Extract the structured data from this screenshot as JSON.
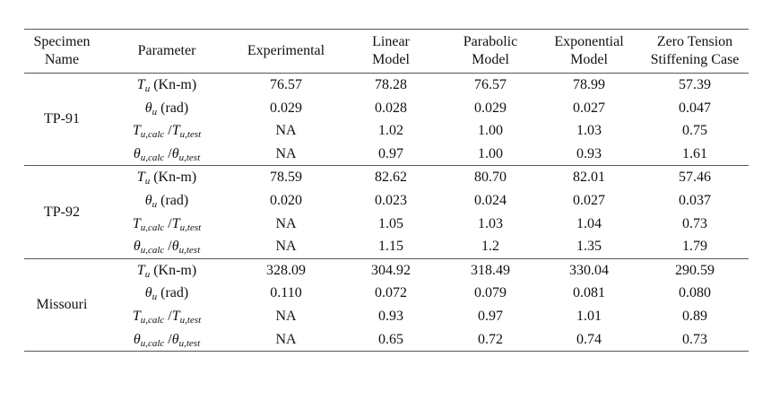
{
  "headers": [
    [
      "Specimen",
      "Name"
    ],
    [
      "Parameter"
    ],
    [
      "Experimental"
    ],
    [
      "Linear",
      "Model"
    ],
    [
      "Parabolic",
      "Model"
    ],
    [
      "Exponential",
      "Model"
    ],
    [
      "Zero Tension",
      "Stiffening Case"
    ]
  ],
  "params": [
    {
      "sym": "T",
      "sub": "u",
      "rest": " (Kn-m)"
    },
    {
      "sym": "θ",
      "sub": "u",
      "rest": " (rad)"
    },
    {
      "sym": "T",
      "sub": "u,calc",
      "slash": " /",
      "sym2": "T",
      "sub2": "u,test"
    },
    {
      "sym": "θ",
      "sub": "u,calc",
      "slash": " /",
      "sym2": "θ",
      "sub2": "u,test"
    }
  ],
  "groups": [
    {
      "name": "TP-91",
      "rows": [
        [
          "76.57",
          "78.28",
          "76.57",
          "78.99",
          "57.39"
        ],
        [
          "0.029",
          "0.028",
          "0.029",
          "0.027",
          "0.047"
        ],
        [
          "NA",
          "1.02",
          "1.00",
          "1.03",
          "0.75"
        ],
        [
          "NA",
          "0.97",
          "1.00",
          "0.93",
          "1.61"
        ]
      ]
    },
    {
      "name": "TP-92",
      "rows": [
        [
          "78.59",
          "82.62",
          "80.70",
          "82.01",
          "57.46"
        ],
        [
          "0.020",
          "0.023",
          "0.024",
          "0.027",
          "0.037"
        ],
        [
          "NA",
          "1.05",
          "1.03",
          "1.04",
          "0.73"
        ],
        [
          "NA",
          "1.15",
          "1.2",
          "1.35",
          "1.79"
        ]
      ]
    },
    {
      "name": "Missouri",
      "rows": [
        [
          "328.09",
          "304.92",
          "318.49",
          "330.04",
          "290.59"
        ],
        [
          "0.110",
          "0.072",
          "0.079",
          "0.081",
          "0.080"
        ],
        [
          "NA",
          "0.93",
          "0.97",
          "1.01",
          "0.89"
        ],
        [
          "NA",
          "0.65",
          "0.72",
          "0.74",
          "0.73"
        ]
      ]
    }
  ]
}
